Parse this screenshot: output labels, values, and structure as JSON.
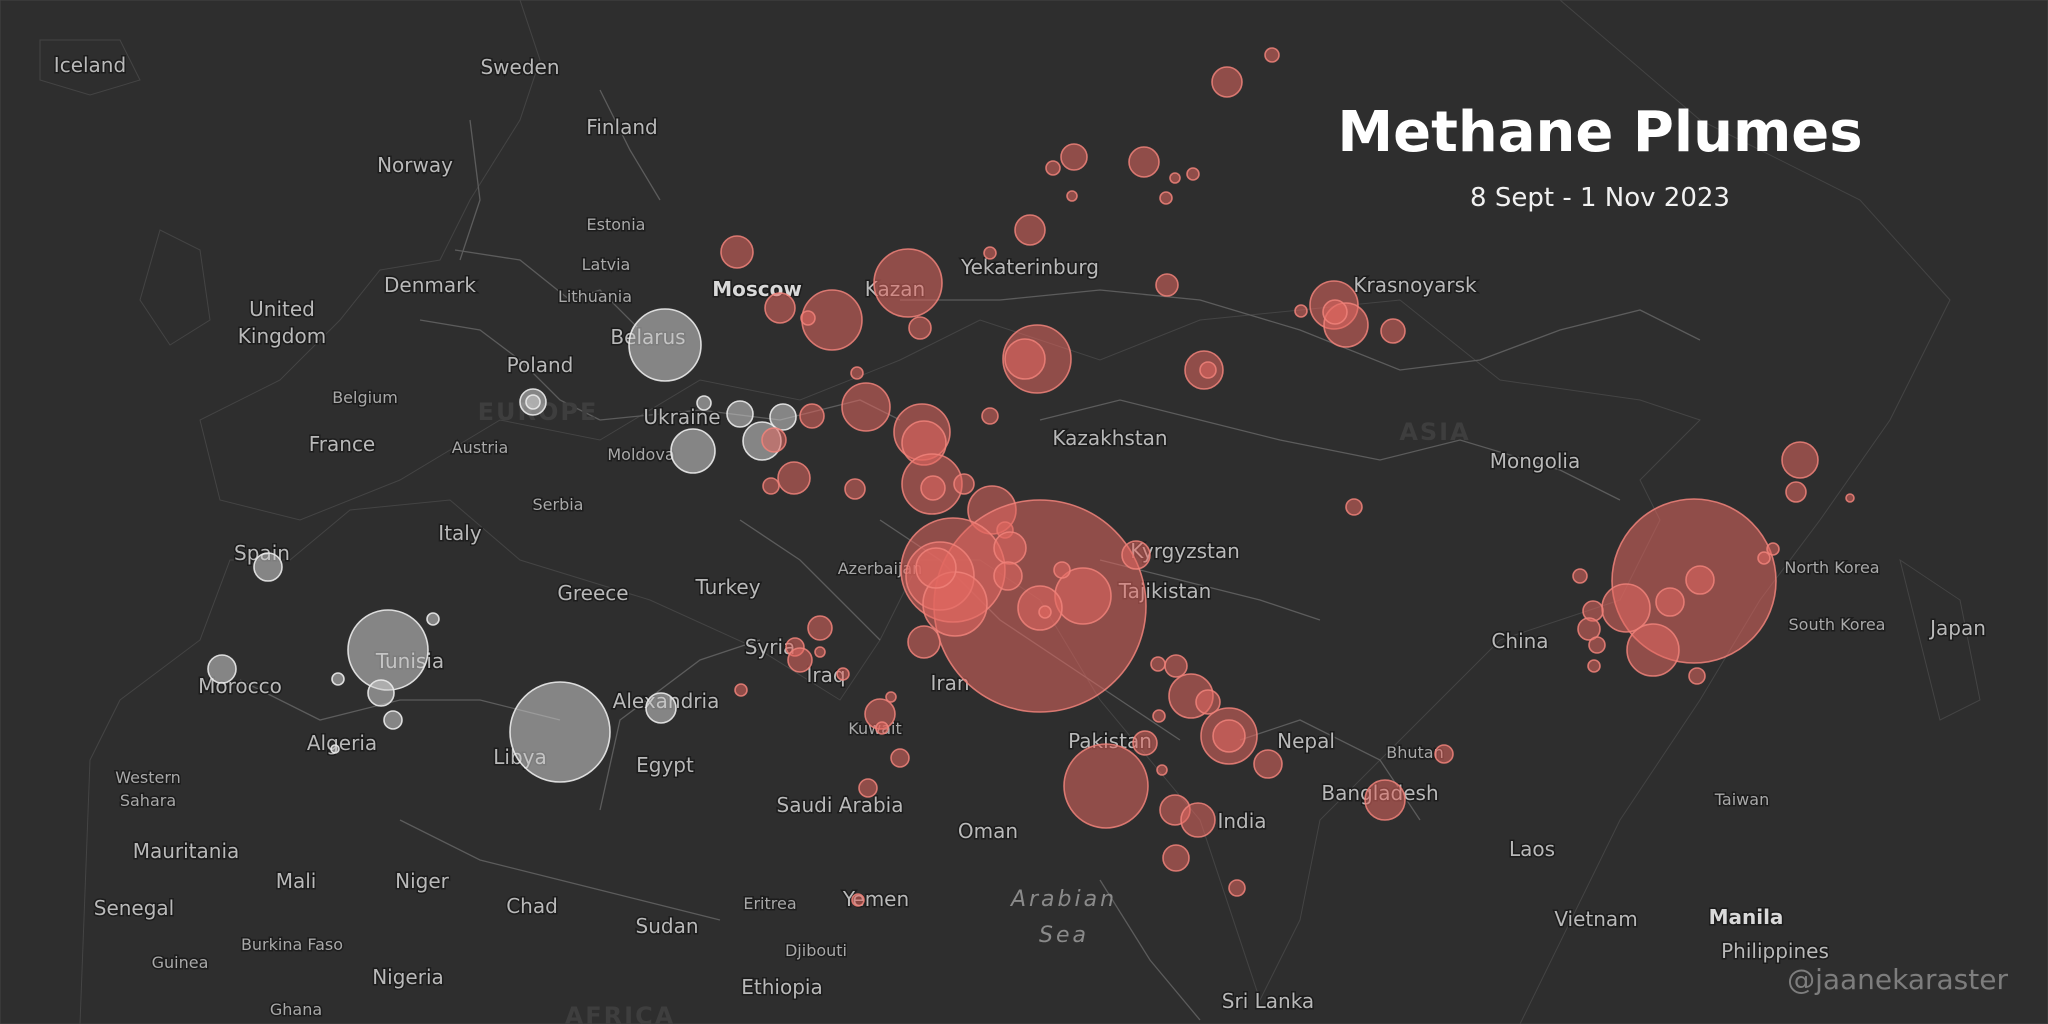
{
  "title": "Methane Plumes",
  "subtitle": "8 Sept - 1 Nov 2023",
  "credit": "@jaanekaraster",
  "colors": {
    "background": "#232323",
    "land": "#2e2e2e",
    "plume_red": "#e26760",
    "plume_grey": "#cdcdcd",
    "title": "#ffffff"
  },
  "labels": {
    "iceland": "Iceland",
    "sweden": "Sweden",
    "finland": "Finland",
    "norway": "Norway",
    "estonia": "Estonia",
    "latvia": "Latvia",
    "lithuania": "Lithuania",
    "denmark": "Denmark",
    "uk_1": "United",
    "uk_2": "Kingdom",
    "moscow": "Moscow",
    "kazan": "Kazan",
    "yekaterinburg": "Yekaterinburg",
    "krasnoyarsk": "Krasnoyarsk",
    "poland": "Poland",
    "belarus": "Belarus",
    "belgium": "Belgium",
    "europe": "EUROPE",
    "ukraine": "Ukraine",
    "france": "France",
    "austria": "Austria",
    "moldova": "Moldova",
    "kazakhstan": "Kazakhstan",
    "asia": "ASIA",
    "mongolia": "Mongolia",
    "serbia": "Serbia",
    "italy": "Italy",
    "spain": "Spain",
    "greece": "Greece",
    "turkey": "Turkey",
    "azerbaijan": "Azerbaijan",
    "kyrgyzstan": "Kyrgyzstan",
    "north_korea": "North Korea",
    "tunisia": "Tunisia",
    "syria": "Syria",
    "tajikistan": "Tajikistan",
    "china": "China",
    "south_korea": "South Korea",
    "japan": "Japan",
    "morocco": "Morocco",
    "iraq": "Iraq",
    "iran": "Iran",
    "alexandria": "Alexandria",
    "kuwait": "Kuwait",
    "algeria": "Algeria",
    "libya": "Libya",
    "pakistan": "Pakistan",
    "nepal": "Nepal",
    "bhutan": "Bhutan",
    "egypt": "Egypt",
    "western_sahara_1": "Western",
    "western_sahara_2": "Sahara",
    "saudi_arabia": "Saudi Arabia",
    "bangladesh": "Bangladesh",
    "taiwan": "Taiwan",
    "india": "India",
    "oman": "Oman",
    "mauritania": "Mauritania",
    "laos": "Laos",
    "mali": "Mali",
    "niger": "Niger",
    "senegal": "Senegal",
    "chad": "Chad",
    "eritrea": "Eritrea",
    "yemen": "Yemen",
    "arabian_sea_1": "Arabian",
    "arabian_sea_2": "Sea",
    "manila": "Manila",
    "sudan": "Sudan",
    "vietnam": "Vietnam",
    "burkina_faso": "Burkina Faso",
    "djibouti": "Djibouti",
    "philippines": "Philippines",
    "guinea": "Guinea",
    "nigeria": "Nigeria",
    "ethiopia": "Ethiopia",
    "ghana": "Ghana",
    "sri_lanka": "Sri Lanka",
    "africa": "AFRICA"
  }
}
